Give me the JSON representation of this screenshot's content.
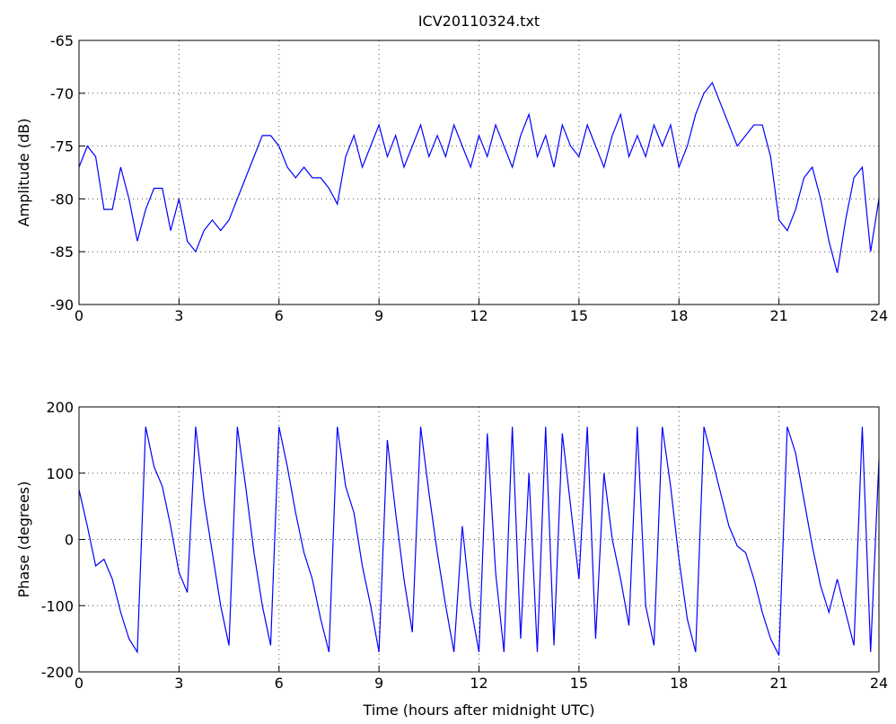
{
  "chart_data": [
    {
      "type": "line",
      "title": "ICV20110324.txt",
      "ylabel": "Amplitude (dB)",
      "color": "#0000ff",
      "grid": true,
      "xlim": [
        0,
        24
      ],
      "xticks": [
        0,
        3,
        6,
        9,
        12,
        15,
        18,
        21,
        24
      ],
      "ylim": [
        -90,
        -65
      ],
      "yticks": [
        -90,
        -85,
        -80,
        -75,
        -70,
        -65
      ],
      "x": [
        0,
        0.25,
        0.5,
        0.75,
        1,
        1.25,
        1.5,
        1.75,
        2,
        2.25,
        2.5,
        2.75,
        3,
        3.25,
        3.5,
        3.75,
        4,
        4.25,
        4.5,
        4.75,
        5,
        5.25,
        5.5,
        5.75,
        6,
        6.25,
        6.5,
        6.75,
        7,
        7.25,
        7.5,
        7.75,
        8,
        8.25,
        8.5,
        8.75,
        9,
        9.25,
        9.5,
        9.75,
        10,
        10.25,
        10.5,
        10.75,
        11,
        11.25,
        11.5,
        11.75,
        12,
        12.25,
        12.5,
        12.75,
        13,
        13.25,
        13.5,
        13.75,
        14,
        14.25,
        14.5,
        14.75,
        15,
        15.25,
        15.5,
        15.75,
        16,
        16.25,
        16.5,
        16.75,
        17,
        17.25,
        17.5,
        17.75,
        18,
        18.25,
        18.5,
        18.75,
        19,
        19.25,
        19.5,
        19.75,
        20,
        20.25,
        20.5,
        20.75,
        21,
        21.25,
        21.5,
        21.75,
        22,
        22.25,
        22.5,
        22.75,
        23,
        23.25,
        23.5,
        23.75,
        24
      ],
      "values": [
        -77,
        -75,
        -76,
        -81,
        -81,
        -77,
        -80,
        -84,
        -81,
        -79,
        -79,
        -83,
        -80,
        -84,
        -85,
        -83,
        -82,
        -83,
        -82,
        -80,
        -78,
        -76,
        -74,
        -74,
        -75,
        -77,
        -78,
        -77,
        -78,
        -78,
        -79,
        -80.5,
        -76,
        -74,
        -77,
        -75,
        -73,
        -76,
        -74,
        -77,
        -75,
        -73,
        -76,
        -74,
        -76,
        -73,
        -75,
        -77,
        -74,
        -76,
        -73,
        -75,
        -77,
        -74,
        -72,
        -76,
        -74,
        -77,
        -73,
        -75,
        -76,
        -73,
        -75,
        -77,
        -74,
        -72,
        -76,
        -74,
        -76,
        -73,
        -75,
        -73,
        -77,
        -75,
        -72,
        -70,
        -69,
        -71,
        -73,
        -75,
        -74,
        -73,
        -73,
        -76,
        -82,
        -83,
        -81,
        -78,
        -77,
        -80,
        -84,
        -87,
        -82,
        -78,
        -77,
        -85,
        -80
      ]
    },
    {
      "type": "line",
      "ylabel": "Phase (degrees)",
      "xlabel": "Time (hours after midnight UTC)",
      "color": "#0000ff",
      "grid": true,
      "xlim": [
        0,
        24
      ],
      "xticks": [
        0,
        3,
        6,
        9,
        12,
        15,
        18,
        21,
        24
      ],
      "ylim": [
        -200,
        200
      ],
      "yticks": [
        -200,
        -100,
        0,
        100,
        200
      ],
      "x": [
        0,
        0.25,
        0.5,
        0.75,
        1,
        1.25,
        1.5,
        1.75,
        2,
        2.25,
        2.5,
        2.75,
        3,
        3.25,
        3.5,
        3.75,
        4,
        4.25,
        4.5,
        4.75,
        5,
        5.25,
        5.5,
        5.75,
        6,
        6.25,
        6.5,
        6.75,
        7,
        7.25,
        7.5,
        7.75,
        8,
        8.25,
        8.5,
        8.75,
        9,
        9.25,
        9.5,
        9.75,
        10,
        10.25,
        10.5,
        10.75,
        11,
        11.25,
        11.5,
        11.75,
        12,
        12.25,
        12.5,
        12.75,
        13,
        13.25,
        13.5,
        13.75,
        14,
        14.25,
        14.5,
        14.75,
        15,
        15.25,
        15.5,
        15.75,
        16,
        16.25,
        16.5,
        16.75,
        17,
        17.25,
        17.5,
        17.75,
        18,
        18.25,
        18.5,
        18.75,
        19,
        19.25,
        19.5,
        19.75,
        20,
        20.25,
        20.5,
        20.75,
        21,
        21.25,
        21.5,
        21.75,
        22,
        22.25,
        22.5,
        22.75,
        23,
        23.25,
        23.5,
        23.75,
        24
      ],
      "values": [
        75,
        20,
        -40,
        -30,
        -60,
        -110,
        -150,
        -170,
        170,
        110,
        80,
        20,
        -50,
        -80,
        170,
        60,
        -20,
        -100,
        -160,
        170,
        80,
        -20,
        -100,
        -160,
        170,
        110,
        40,
        -20,
        -60,
        -120,
        -170,
        170,
        80,
        40,
        -40,
        -100,
        -170,
        150,
        40,
        -60,
        -140,
        170,
        70,
        -20,
        -100,
        -170,
        20,
        -100,
        -170,
        160,
        -50,
        -170,
        170,
        -150,
        100,
        -170,
        170,
        -160,
        160,
        50,
        -60,
        170,
        -150,
        100,
        0,
        -60,
        -130,
        170,
        -100,
        -160,
        170,
        80,
        -30,
        -120,
        -170,
        170,
        120,
        70,
        20,
        -10,
        -20,
        -60,
        -110,
        -150,
        -175,
        170,
        130,
        60,
        -10,
        -70,
        -110,
        -60,
        -110,
        -160,
        170,
        -170,
        120
      ]
    }
  ]
}
